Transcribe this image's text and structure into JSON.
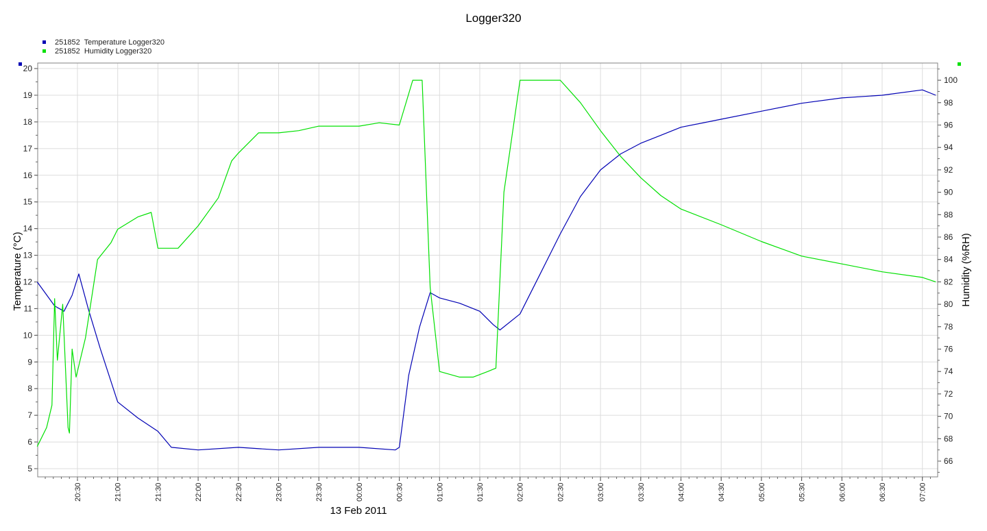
{
  "chart_data": {
    "type": "line",
    "title": "Logger320",
    "ylabel": "Temperature (°C)",
    "y2label": "Humidity (%RH)",
    "date_label": "13 Feb 2011",
    "ylim": [
      5,
      20
    ],
    "y2lim": [
      65,
      101
    ],
    "grid": true,
    "legend_position": "top-left",
    "x_ticks": [
      "20:30",
      "21:00",
      "21:30",
      "22:00",
      "22:30",
      "23:00",
      "23:30",
      "00:00",
      "00:30",
      "01:00",
      "01:30",
      "02:00",
      "02:30",
      "03:00",
      "03:30",
      "04:00",
      "04:30",
      "05:00",
      "05:30",
      "06:00",
      "06:30",
      "07:00"
    ],
    "y_ticks": [
      5,
      6,
      7,
      8,
      9,
      10,
      11,
      12,
      13,
      14,
      15,
      16,
      17,
      18,
      19,
      20
    ],
    "y2_ticks": [
      66,
      68,
      70,
      72,
      74,
      76,
      78,
      80,
      82,
      84,
      86,
      88,
      90,
      92,
      94,
      96,
      98,
      100
    ],
    "colors": {
      "temperature": "#0000b4",
      "humidity": "#00e000",
      "grid": "#dcdcdc"
    },
    "series": [
      {
        "name": "251852  Temperature Logger320",
        "axis": "left",
        "color": "#0000b4",
        "x": [
          "20:00",
          "20:13",
          "20:20",
          "20:26",
          "20:31",
          "20:38",
          "20:47",
          "21:00",
          "21:15",
          "21:30",
          "21:40",
          "22:00",
          "22:30",
          "23:00",
          "23:30",
          "00:00",
          "00:27",
          "00:30",
          "00:37",
          "00:45",
          "00:53",
          "01:00",
          "01:15",
          "01:30",
          "01:40",
          "01:45",
          "02:00",
          "02:15",
          "02:30",
          "02:45",
          "03:00",
          "03:15",
          "03:30",
          "03:45",
          "04:00",
          "04:30",
          "05:00",
          "05:30",
          "06:00",
          "06:30",
          "07:00",
          "07:10"
        ],
        "y": [
          12.0,
          11.1,
          10.9,
          11.5,
          12.3,
          11.0,
          9.5,
          7.5,
          6.9,
          6.4,
          5.8,
          5.7,
          5.8,
          5.7,
          5.8,
          5.8,
          5.7,
          5.8,
          8.5,
          10.3,
          11.6,
          11.4,
          11.2,
          10.9,
          10.4,
          10.2,
          10.8,
          12.3,
          13.8,
          15.2,
          16.2,
          16.8,
          17.2,
          17.5,
          17.8,
          18.1,
          18.4,
          18.7,
          18.9,
          19.0,
          19.2,
          19.0
        ]
      },
      {
        "name": "251852  Humidity Logger320",
        "axis": "right",
        "color": "#00e000",
        "x": [
          "20:00",
          "20:07",
          "20:11",
          "20:13",
          "20:15",
          "20:19",
          "20:23",
          "20:24",
          "20:26",
          "20:29",
          "20:36",
          "20:45",
          "20:55",
          "21:00",
          "21:15",
          "21:25",
          "21:30",
          "21:45",
          "22:00",
          "22:15",
          "22:25",
          "22:30",
          "22:45",
          "23:00",
          "23:15",
          "23:30",
          "00:00",
          "00:15",
          "00:30",
          "00:40",
          "00:47",
          "00:53",
          "01:00",
          "01:15",
          "01:25",
          "01:36",
          "01:42",
          "01:48",
          "02:00",
          "02:30",
          "02:45",
          "03:00",
          "03:15",
          "03:30",
          "03:45",
          "04:00",
          "04:30",
          "05:00",
          "05:30",
          "06:00",
          "06:30",
          "07:00",
          "07:10"
        ],
        "y": [
          67.3,
          69.0,
          71.0,
          80.5,
          75.0,
          80.0,
          69.0,
          68.5,
          76.0,
          73.5,
          77.0,
          84.0,
          85.5,
          86.7,
          87.8,
          88.2,
          85.0,
          85.0,
          87.0,
          89.5,
          92.8,
          93.5,
          95.3,
          95.3,
          95.5,
          95.9,
          95.9,
          96.2,
          96.0,
          100.0,
          100.0,
          81.5,
          74.0,
          73.5,
          73.5,
          74.0,
          74.3,
          90.0,
          100.0,
          100.0,
          98.0,
          95.5,
          93.2,
          91.3,
          89.7,
          88.5,
          87.1,
          85.6,
          84.3,
          83.6,
          82.9,
          82.4,
          82.0
        ]
      }
    ]
  }
}
